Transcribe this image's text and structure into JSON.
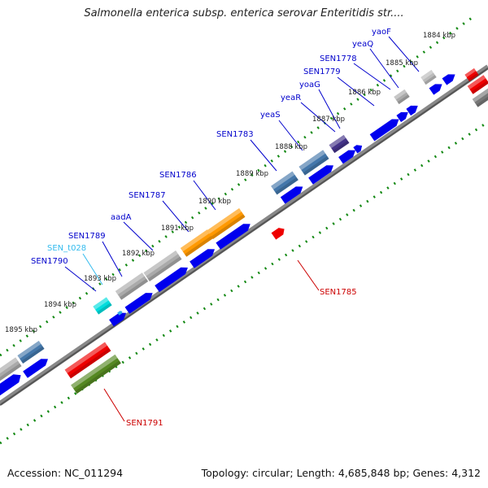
{
  "title": "Salmonella enterica subsp. enterica serovar Enteritidis str....",
  "footer": {
    "accession": "Accession: NC_011294",
    "topology": "Topology: circular; Length: 4,685,848 bp; Genes: 4,312"
  },
  "ticks": [
    "1884 kbp",
    "1885 kbp",
    "1886 kbp",
    "1887 kbp",
    "1888 kbp",
    "1889 kbp",
    "1890 kbp",
    "1891 kbp",
    "1892 kbp",
    "1893 kbp",
    "1894 kbp",
    "1895 kbp"
  ],
  "outer_labels": [
    {
      "text": "yaoF",
      "color": "#0000cc"
    },
    {
      "text": "yeaQ",
      "color": "#0000cc"
    },
    {
      "text": "SEN1778",
      "color": "#0000cc"
    },
    {
      "text": "SEN1779",
      "color": "#0000cc"
    },
    {
      "text": "yoaG",
      "color": "#0000cc"
    },
    {
      "text": "yeaR",
      "color": "#0000cc"
    },
    {
      "text": "yeaS",
      "color": "#0000cc"
    },
    {
      "text": "SEN1783",
      "color": "#0000cc"
    },
    {
      "text": "SEN1786",
      "color": "#0000cc"
    },
    {
      "text": "SEN1787",
      "color": "#0000cc"
    },
    {
      "text": "aadA",
      "color": "#0000cc"
    },
    {
      "text": "SEN1789",
      "color": "#0000cc"
    },
    {
      "text": "SEN_t028",
      "color": "#33bbee"
    },
    {
      "text": "SEN1790",
      "color": "#0000cc"
    }
  ],
  "inner_labels": [
    {
      "text": "SEN1785",
      "color": "#cc0000"
    },
    {
      "text": "SEN1791",
      "color": "#cc0000"
    }
  ],
  "colors": {
    "backbone": "#888888",
    "cds_blue": "#0000ee",
    "orange": "#ff9900",
    "gray": "#aaaaaa",
    "steelblue": "#4477aa",
    "purple": "#443388",
    "cyan": "#00dddd",
    "red": "#ee0000",
    "olive": "#558822",
    "tick_green": "#118811"
  }
}
